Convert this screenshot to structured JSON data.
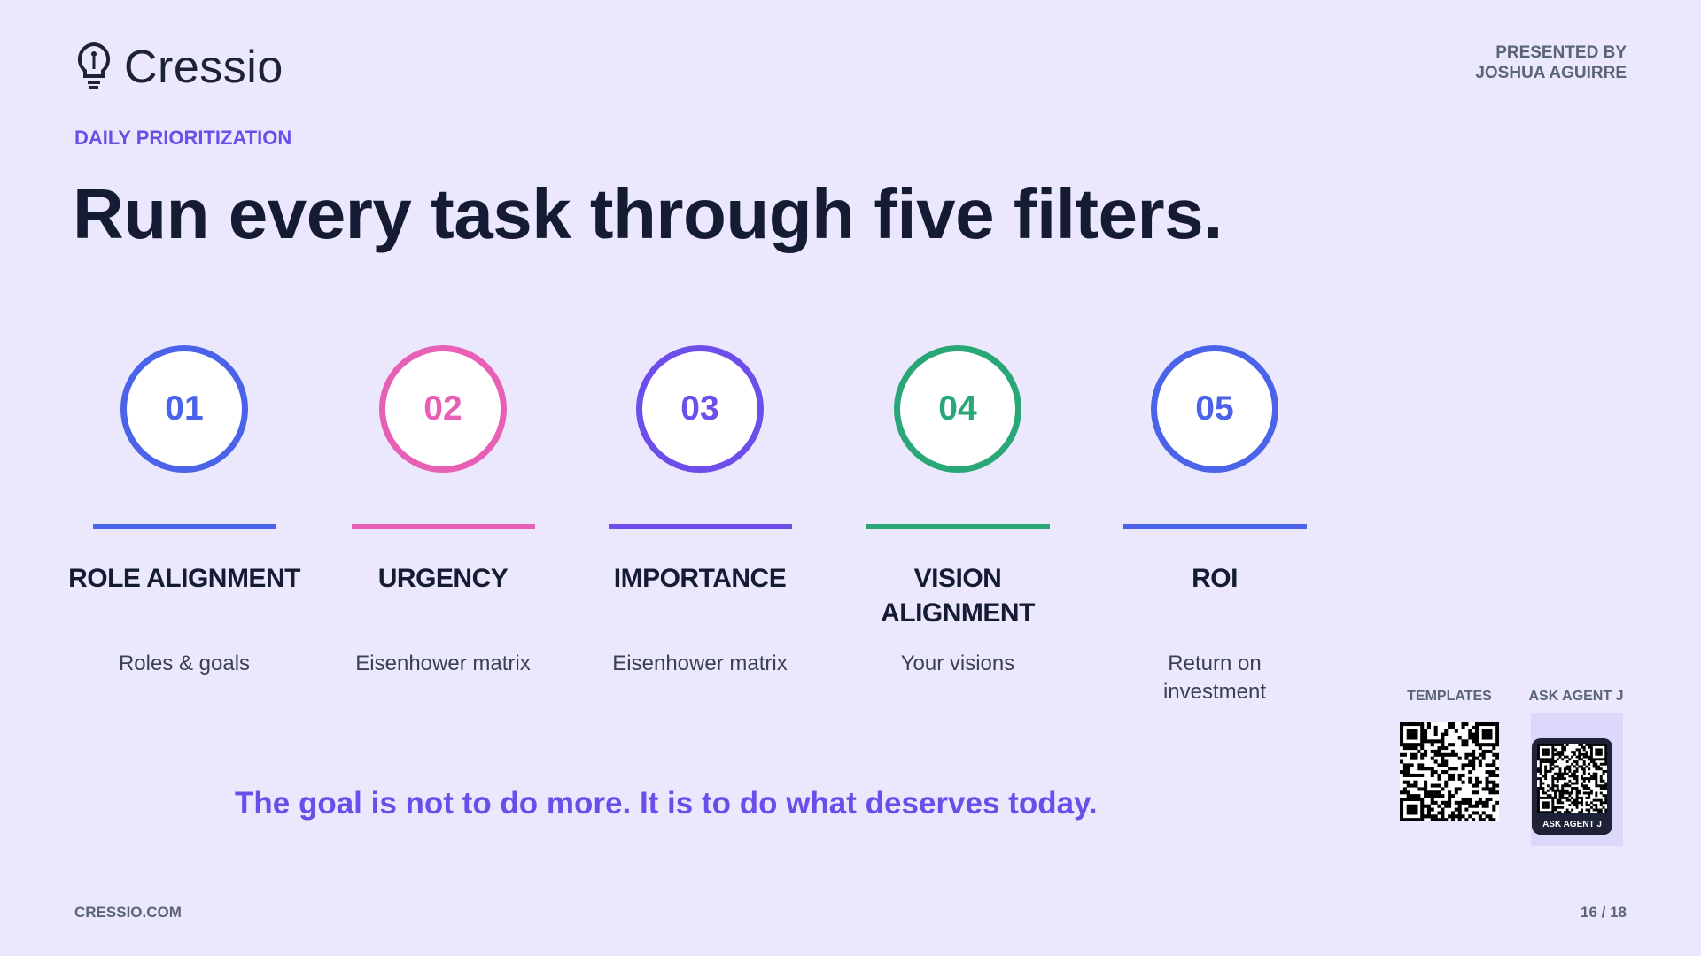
{
  "header": {
    "brand": "Cressio",
    "presenter_label": "PRESENTED BY",
    "presenter_name": "JOSHUA AGUIRRE"
  },
  "eyebrow": "DAILY PRIORITIZATION",
  "title": "Run every task through five filters.",
  "filters": [
    {
      "number": "01",
      "title": "ROLE ALIGNMENT",
      "description": "Roles & goals"
    },
    {
      "number": "02",
      "title": "URGENCY",
      "description": "Eisenhower matrix"
    },
    {
      "number": "03",
      "title": "IMPORTANCE",
      "description": "Eisenhower matrix"
    },
    {
      "number": "04",
      "title": "VISION ALIGNMENT",
      "description": "Your visions"
    },
    {
      "number": "05",
      "title": "ROI",
      "description": "Return on investment"
    }
  ],
  "quote": "The goal is not to do more. It is to do what deserves today.",
  "qr_codes": [
    {
      "label": "TEMPLATES"
    },
    {
      "label": "ASK AGENT J",
      "badge": "ASK AGENT J"
    }
  ],
  "footer": {
    "site": "CRESSIO.COM",
    "page": "16 / 18"
  }
}
